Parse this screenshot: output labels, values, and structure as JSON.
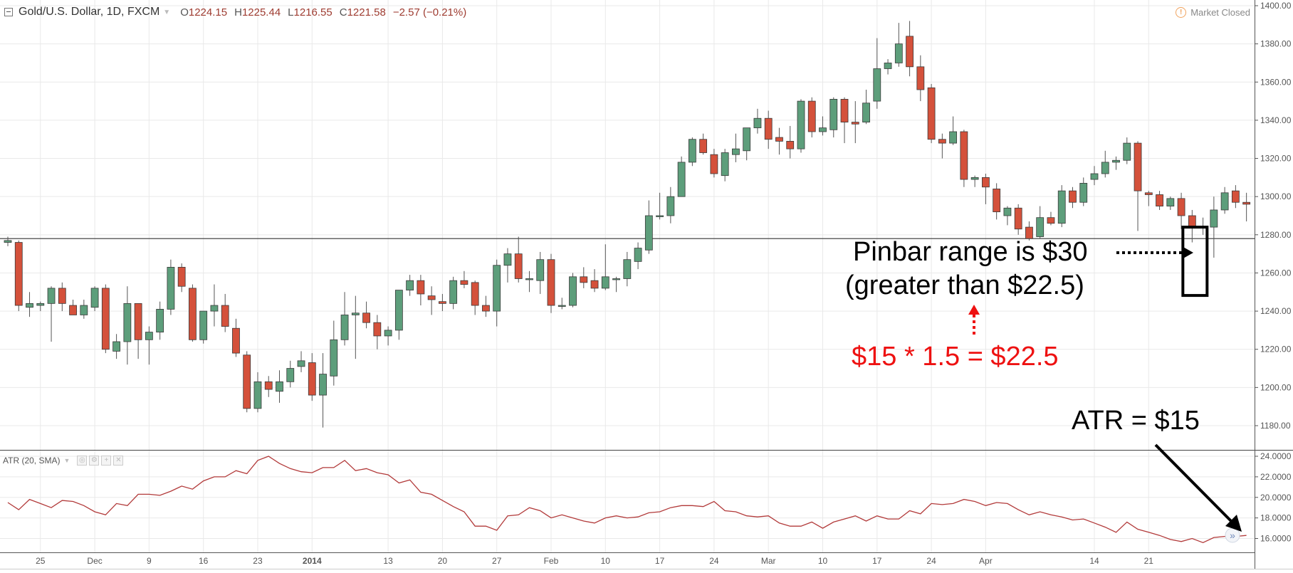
{
  "header": {
    "symbol": "Gold/U.S. Dollar, 1D, FXCM",
    "open_label": "O",
    "open": "1224.15",
    "high_label": "H",
    "high": "1225.44",
    "low_label": "L",
    "low": "1216.55",
    "close_label": "C",
    "close": "1221.58",
    "change": "−2.57 (−0.21%)",
    "status": "Market Closed"
  },
  "indicator": {
    "label": "ATR (20, SMA)"
  },
  "annotations": {
    "pinbar_line1": "Pinbar range is $30",
    "pinbar_line2": "(greater than $22.5)",
    "calc": "$15 * 1.5 = $22.5",
    "atr": "ATR = $15"
  },
  "colors": {
    "up": "#5d9e7b",
    "down": "#d4513b",
    "atr_line": "#b23a3a",
    "annotation_red": "#ee1111",
    "annotation_black": "#000000"
  },
  "chart_data": [
    {
      "type": "candlestick",
      "title": "Gold/U.S. Dollar, 1D, FXCM",
      "y_ticks": [
        "1180.00",
        "1200.00",
        "1220.00",
        "1240.00",
        "1260.00",
        "1280.00",
        "1300.00",
        "1320.00",
        "1340.00",
        "1360.00",
        "1380.00",
        "1400.00"
      ],
      "ylim": [
        1172,
        1402
      ],
      "x_ticks": [
        {
          "label": "25",
          "index": 3
        },
        {
          "label": "Dec",
          "index": 8
        },
        {
          "label": "9",
          "index": 13
        },
        {
          "label": "16",
          "index": 18
        },
        {
          "label": "23",
          "index": 23
        },
        {
          "label": "2014",
          "index": 28
        },
        {
          "label": "13",
          "index": 35
        },
        {
          "label": "20",
          "index": 40
        },
        {
          "label": "27",
          "index": 45
        },
        {
          "label": "Feb",
          "index": 50
        },
        {
          "label": "10",
          "index": 55
        },
        {
          "label": "17",
          "index": 60
        },
        {
          "label": "24",
          "index": 65
        },
        {
          "label": "Mar",
          "index": 70
        },
        {
          "label": "10",
          "index": 75
        },
        {
          "label": "17",
          "index": 80
        },
        {
          "label": "24",
          "index": 85
        },
        {
          "label": "Apr",
          "index": 90
        },
        {
          "label": "14",
          "index": 100
        },
        {
          "label": "21",
          "index": 105
        }
      ],
      "horizontal_line": 1278,
      "highlight_index": 109,
      "candles": [
        [
          1276,
          1279,
          1274,
          1277
        ],
        [
          1276,
          1277,
          1240,
          1243
        ],
        [
          1242,
          1250,
          1237,
          1244
        ],
        [
          1243,
          1245,
          1240,
          1244
        ],
        [
          1244,
          1253,
          1224,
          1252
        ],
        [
          1252,
          1255,
          1240,
          1244
        ],
        [
          1243,
          1246,
          1238,
          1238
        ],
        [
          1238,
          1246,
          1236,
          1243
        ],
        [
          1242,
          1253,
          1240,
          1252
        ],
        [
          1252,
          1254,
          1218,
          1220
        ],
        [
          1219,
          1228,
          1215,
          1224
        ],
        [
          1224,
          1253,
          1212,
          1244
        ],
        [
          1244,
          1244,
          1215,
          1225
        ],
        [
          1225,
          1232,
          1212,
          1229
        ],
        [
          1229,
          1245,
          1225,
          1241
        ],
        [
          1241,
          1267,
          1238,
          1263
        ],
        [
          1263,
          1265,
          1250,
          1253
        ],
        [
          1252,
          1254,
          1224,
          1225
        ],
        [
          1225,
          1240,
          1223,
          1240
        ],
        [
          1240,
          1254,
          1232,
          1243
        ],
        [
          1243,
          1249,
          1229,
          1232
        ],
        [
          1231,
          1236,
          1216,
          1218
        ],
        [
          1217,
          1219,
          1187,
          1189
        ],
        [
          1189,
          1208,
          1187,
          1203
        ],
        [
          1203,
          1206,
          1195,
          1199
        ],
        [
          1198,
          1209,
          1192,
          1203
        ],
        [
          1203,
          1214,
          1200,
          1210
        ],
        [
          1211,
          1219,
          1208,
          1214
        ],
        [
          1213,
          1218,
          1193,
          1196
        ],
        [
          1196,
          1218,
          1179,
          1207
        ],
        [
          1206,
          1235,
          1201,
          1225
        ],
        [
          1225,
          1250,
          1222,
          1238
        ],
        [
          1238,
          1248,
          1215,
          1239
        ],
        [
          1239,
          1245,
          1231,
          1234
        ],
        [
          1234,
          1238,
          1220,
          1227
        ],
        [
          1227,
          1232,
          1222,
          1230
        ],
        [
          1230,
          1251,
          1225,
          1251
        ],
        [
          1251,
          1259,
          1248,
          1256
        ],
        [
          1256,
          1259,
          1243,
          1249
        ],
        [
          1248,
          1253,
          1238,
          1246
        ],
        [
          1245,
          1249,
          1240,
          1244
        ],
        [
          1244,
          1258,
          1241,
          1256
        ],
        [
          1256,
          1261,
          1252,
          1254
        ],
        [
          1255,
          1256,
          1238,
          1243
        ],
        [
          1243,
          1248,
          1237,
          1240
        ],
        [
          1240,
          1267,
          1232,
          1264
        ],
        [
          1264,
          1273,
          1255,
          1270
        ],
        [
          1270,
          1279,
          1255,
          1257
        ],
        [
          1257,
          1261,
          1250,
          1257
        ],
        [
          1256,
          1271,
          1249,
          1267
        ],
        [
          1267,
          1270,
          1239,
          1243
        ],
        [
          1243,
          1247,
          1241,
          1243
        ],
        [
          1243,
          1260,
          1242,
          1258
        ],
        [
          1258,
          1263,
          1252,
          1255
        ],
        [
          1256,
          1262,
          1250,
          1252
        ],
        [
          1252,
          1275,
          1251,
          1258
        ],
        [
          1257,
          1258,
          1250,
          1257
        ],
        [
          1257,
          1271,
          1253,
          1267
        ],
        [
          1266,
          1276,
          1262,
          1273
        ],
        [
          1272,
          1298,
          1270,
          1290
        ],
        [
          1290,
          1302,
          1288,
          1290
        ],
        [
          1290,
          1305,
          1286,
          1300
        ],
        [
          1300,
          1321,
          1301,
          1318
        ],
        [
          1318,
          1331,
          1316,
          1330
        ],
        [
          1330,
          1333,
          1322,
          1323
        ],
        [
          1322,
          1325,
          1310,
          1312
        ],
        [
          1311,
          1325,
          1308,
          1323
        ],
        [
          1322,
          1333,
          1318,
          1325
        ],
        [
          1324,
          1336,
          1319,
          1336
        ],
        [
          1336,
          1346,
          1333,
          1341
        ],
        [
          1341,
          1345,
          1325,
          1330
        ],
        [
          1331,
          1336,
          1322,
          1329
        ],
        [
          1329,
          1337,
          1320,
          1325
        ],
        [
          1325,
          1351,
          1323,
          1350
        ],
        [
          1350,
          1352,
          1331,
          1334
        ],
        [
          1334,
          1342,
          1332,
          1336
        ],
        [
          1335,
          1352,
          1331,
          1351
        ],
        [
          1351,
          1352,
          1328,
          1339
        ],
        [
          1339,
          1350,
          1328,
          1338
        ],
        [
          1339,
          1356,
          1338,
          1349
        ],
        [
          1350,
          1383,
          1346,
          1367
        ],
        [
          1367,
          1372,
          1364,
          1370
        ],
        [
          1370,
          1391,
          1368,
          1380
        ],
        [
          1384,
          1392,
          1363,
          1368
        ],
        [
          1368,
          1374,
          1350,
          1356
        ],
        [
          1357,
          1359,
          1328,
          1330
        ],
        [
          1330,
          1333,
          1320,
          1328
        ],
        [
          1328,
          1342,
          1327,
          1334
        ],
        [
          1334,
          1335,
          1305,
          1309
        ],
        [
          1309,
          1311,
          1305,
          1310
        ],
        [
          1310,
          1312,
          1296,
          1305
        ],
        [
          1304,
          1307,
          1288,
          1292
        ],
        [
          1290,
          1295,
          1285,
          1294
        ],
        [
          1294,
          1296,
          1280,
          1283
        ],
        [
          1284,
          1287,
          1277,
          1278
        ],
        [
          1279,
          1295,
          1278,
          1289
        ],
        [
          1289,
          1292,
          1285,
          1286
        ],
        [
          1286,
          1306,
          1284,
          1303
        ],
        [
          1303,
          1305,
          1294,
          1297
        ],
        [
          1297,
          1310,
          1295,
          1307
        ],
        [
          1309,
          1316,
          1306,
          1312
        ],
        [
          1312,
          1324,
          1310,
          1318
        ],
        [
          1318,
          1321,
          1314,
          1319
        ],
        [
          1319,
          1331,
          1317,
          1328
        ],
        [
          1328,
          1329,
          1282,
          1303
        ],
        [
          1302,
          1303,
          1295,
          1301
        ],
        [
          1301,
          1303,
          1293,
          1295
        ],
        [
          1295,
          1300,
          1293,
          1299
        ],
        [
          1299,
          1302,
          1283,
          1290
        ],
        [
          1290,
          1293,
          1276,
          1284
        ],
        [
          1284,
          1289,
          1280,
          1284
        ],
        [
          1284,
          1300,
          1268,
          1293
        ],
        [
          1293,
          1305,
          1291,
          1302
        ],
        [
          1303,
          1306,
          1294,
          1297
        ],
        [
          1297,
          1302,
          1287,
          1296
        ]
      ]
    },
    {
      "type": "line",
      "title": "ATR (20, SMA)",
      "y_ticks": [
        "16.0000",
        "18.0000",
        "20.0000",
        "22.0000",
        "24.0000"
      ],
      "ylim": [
        15.2,
        24.2
      ],
      "values": [
        19.5,
        18.8,
        19.8,
        19.4,
        19.0,
        19.7,
        19.6,
        19.2,
        18.6,
        18.3,
        19.4,
        19.2,
        20.3,
        20.3,
        20.2,
        20.6,
        21.1,
        20.8,
        21.6,
        22.0,
        22.0,
        22.6,
        22.3,
        23.6,
        24.0,
        23.3,
        22.8,
        22.5,
        22.4,
        22.9,
        22.9,
        23.6,
        22.6,
        22.8,
        22.4,
        22.2,
        21.4,
        21.7,
        20.5,
        20.3,
        19.7,
        19.1,
        18.6,
        17.2,
        17.2,
        16.8,
        18.2,
        18.3,
        19.0,
        18.7,
        18.0,
        18.3,
        18.0,
        17.7,
        17.5,
        18.0,
        18.2,
        18.0,
        18.1,
        18.5,
        18.6,
        19.0,
        19.2,
        19.2,
        19.1,
        19.6,
        18.7,
        18.6,
        18.2,
        18.1,
        18.2,
        17.5,
        17.2,
        17.2,
        17.6,
        17.0,
        17.6,
        17.9,
        18.2,
        17.7,
        18.2,
        17.9,
        17.9,
        18.7,
        18.4,
        19.4,
        19.3,
        19.4,
        19.8,
        19.6,
        19.2,
        19.5,
        19.4,
        18.8,
        18.3,
        18.6,
        18.3,
        18.1,
        17.8,
        17.9,
        17.5,
        17.1,
        16.6,
        17.6,
        16.9,
        16.6,
        16.3,
        15.9,
        15.7,
        16.0,
        15.6,
        16.1,
        16.2,
        16.2,
        16.3
      ]
    }
  ]
}
